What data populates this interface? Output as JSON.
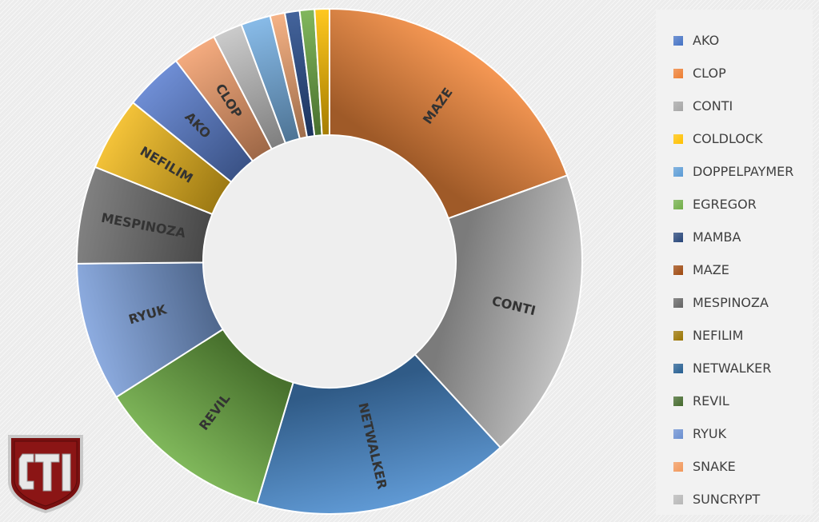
{
  "chart_data": {
    "type": "pie",
    "donut": true,
    "legend_position": "right",
    "slices": [
      {
        "name": "MAZE",
        "value": 20.6,
        "color": "#f58a3d",
        "label": "MAZE"
      },
      {
        "name": "CONTI",
        "value": 19.8,
        "color": "#bdbdbd",
        "label": "CONTI"
      },
      {
        "name": "NETWALKER",
        "value": 17.4,
        "color": "#4a8ccf",
        "label": "NETWALKER"
      },
      {
        "name": "REVIL",
        "value": 12.0,
        "color": "#6fae45",
        "label": "REVIL"
      },
      {
        "name": "RYUK",
        "value": 9.4,
        "color": "#7da1dc",
        "label": "RYUK"
      },
      {
        "name": "MESPINOZA",
        "value": 6.6,
        "color": "#707070",
        "label": "MESPINOZA"
      },
      {
        "name": "NEFILIM",
        "value": 5.0,
        "color": "#f2bb1e",
        "label": "NEFILIM"
      },
      {
        "name": "AKO",
        "value": 4.0,
        "color": "#5b7fcf",
        "label": "AKO"
      },
      {
        "name": "CLOP",
        "value": 3.0,
        "color": "#f3a06d",
        "label": "CLOP"
      },
      {
        "name": "SUNCRYPT",
        "value": 2.0,
        "color": "#c4c4c4",
        "label": ""
      },
      {
        "name": "DOPPELPAYMER",
        "value": 2.0,
        "color": "#78b2e5",
        "label": ""
      },
      {
        "name": "SNAKE",
        "value": 1.0,
        "color": "#f4a774",
        "label": ""
      },
      {
        "name": "MAMBA",
        "value": 1.0,
        "color": "#2a4f8f",
        "label": ""
      },
      {
        "name": "EGREGOR",
        "value": 1.0,
        "color": "#70ad47",
        "label": ""
      },
      {
        "name": "COLDLOCK",
        "value": 1.0,
        "color": "#ffc000",
        "label": ""
      }
    ],
    "legend": [
      {
        "name": "AKO",
        "color": "#4472c4"
      },
      {
        "name": "CLOP",
        "color": "#ed7d31"
      },
      {
        "name": "CONTI",
        "color": "#a5a5a5"
      },
      {
        "name": "COLDLOCK",
        "color": "#ffc000"
      },
      {
        "name": "DOPPELPAYMER",
        "color": "#5b9bd5"
      },
      {
        "name": "EGREGOR",
        "color": "#70ad47"
      },
      {
        "name": "MAMBA",
        "color": "#264478"
      },
      {
        "name": "MAZE",
        "color": "#9e480e"
      },
      {
        "name": "MESPINOZA",
        "color": "#636363"
      },
      {
        "name": "NEFILIM",
        "color": "#997300"
      },
      {
        "name": "NETWALKER",
        "color": "#255e91"
      },
      {
        "name": "REVIL",
        "color": "#43682b"
      },
      {
        "name": "RYUK",
        "color": "#698ed0"
      },
      {
        "name": "SNAKE",
        "color": "#f1975a"
      },
      {
        "name": "SUNCRYPT",
        "color": "#b7b7b7"
      }
    ]
  },
  "logo": {
    "text": "CTI"
  }
}
